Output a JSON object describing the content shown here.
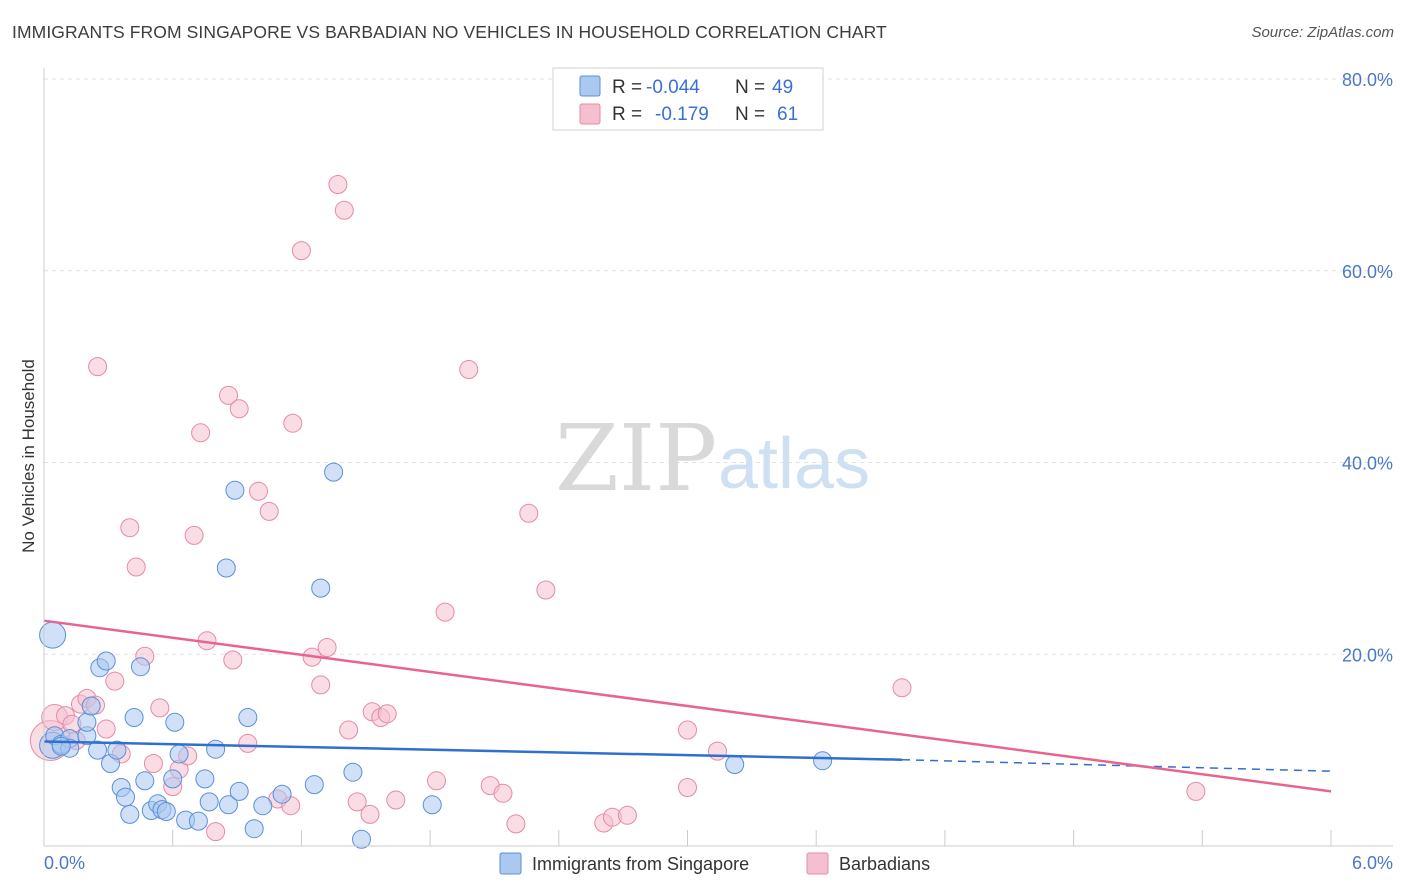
{
  "title": "IMMIGRANTS FROM SINGAPORE VS BARBADIAN NO VEHICLES IN HOUSEHOLD CORRELATION CHART",
  "source": "Source: ZipAtlas.com",
  "watermark": {
    "zip": "ZIP",
    "atlas": "atlas"
  },
  "colors": {
    "blue_fill": "#aac8f0",
    "blue_stroke": "#5b8fd8",
    "blue_line": "#2f6fd0",
    "pink_fill": "#f6bfd0",
    "pink_stroke": "#e68aa8",
    "pink_line": "#e8648f",
    "tick_text": "#4a78c8",
    "grid": "#dddddd"
  },
  "legend": {
    "rows": [
      {
        "r_label": "R =",
        "r_value": "-0.044",
        "n_label": "N =",
        "n_value": "49"
      },
      {
        "r_label": "R =",
        "r_value": "-0.179",
        "n_label": "N =",
        "n_value": "61"
      }
    ]
  },
  "chart_data": {
    "type": "scatter",
    "title": "IMMIGRANTS FROM SINGAPORE VS BARBADIAN NO VEHICLES IN HOUSEHOLD CORRELATION CHART",
    "xlabel": "",
    "ylabel": "No Vehicles in Household",
    "xlim": [
      0,
      6.0
    ],
    "ylim": [
      0,
      80
    ],
    "x_tick_labels": [
      "0.0%",
      "6.0%"
    ],
    "y_ticks": [
      20,
      40,
      60,
      80
    ],
    "y_tick_labels": [
      "20.0%",
      "40.0%",
      "60.0%",
      "80.0%"
    ],
    "grid": true,
    "legend_position": "top-center",
    "series": [
      {
        "name": "Immigrants from Singapore",
        "color": "#5b8fd8",
        "trend": {
          "x0": 0,
          "y0": 10.9,
          "x1": 4.0,
          "y1": 9.0,
          "x_dash_end": 6.0,
          "y_dash_end": 7.8
        },
        "points": [
          [
            0.04,
            22.0,
            2
          ],
          [
            0.04,
            10.5,
            2
          ],
          [
            0.05,
            11.5,
            1
          ],
          [
            0.08,
            10.6,
            1
          ],
          [
            0.12,
            11.2,
            1
          ],
          [
            0.12,
            10.2,
            1
          ],
          [
            0.2,
            11.5,
            1
          ],
          [
            0.2,
            12.9,
            1
          ],
          [
            0.22,
            14.6,
            1
          ],
          [
            0.25,
            10.0,
            1
          ],
          [
            0.26,
            18.6,
            1
          ],
          [
            0.29,
            19.3,
            1
          ],
          [
            0.31,
            8.6,
            1
          ],
          [
            0.34,
            10.0,
            1
          ],
          [
            0.36,
            6.1,
            1
          ],
          [
            0.38,
            5.1,
            1
          ],
          [
            0.4,
            3.3,
            1
          ],
          [
            0.42,
            13.4,
            1
          ],
          [
            0.45,
            18.7,
            1
          ],
          [
            0.47,
            6.8,
            1
          ],
          [
            0.5,
            3.7,
            1
          ],
          [
            0.53,
            4.4,
            1
          ],
          [
            0.55,
            3.8,
            1
          ],
          [
            0.57,
            3.6,
            1
          ],
          [
            0.6,
            7.0,
            1
          ],
          [
            0.61,
            12.9,
            1
          ],
          [
            0.63,
            9.6,
            1
          ],
          [
            0.66,
            2.7,
            1
          ],
          [
            0.72,
            2.6,
            1
          ],
          [
            0.75,
            7.0,
            1
          ],
          [
            0.77,
            4.6,
            1
          ],
          [
            0.8,
            10.1,
            1
          ],
          [
            0.85,
            29.0,
            1
          ],
          [
            0.86,
            4.3,
            1
          ],
          [
            0.89,
            37.1,
            1
          ],
          [
            0.91,
            5.7,
            1
          ],
          [
            0.95,
            13.4,
            1
          ],
          [
            0.98,
            1.8,
            1
          ],
          [
            1.02,
            4.2,
            1
          ],
          [
            1.11,
            5.4,
            1
          ],
          [
            1.26,
            6.4,
            1
          ],
          [
            1.29,
            26.9,
            1
          ],
          [
            1.35,
            39.0,
            1
          ],
          [
            1.44,
            7.7,
            1
          ],
          [
            1.48,
            0.7,
            1
          ],
          [
            1.81,
            4.3,
            1
          ],
          [
            3.22,
            8.5,
            1
          ],
          [
            3.63,
            8.9,
            1
          ],
          [
            0.08,
            10.4,
            1
          ]
        ]
      },
      {
        "name": "Barbadians",
        "color": "#e68aa8",
        "trend": {
          "x0": 0,
          "y0": 23.5,
          "x1": 6.0,
          "y1": 5.7
        },
        "points": [
          [
            0.03,
            11.0,
            4
          ],
          [
            0.05,
            13.4,
            2
          ],
          [
            0.1,
            13.6,
            1
          ],
          [
            0.13,
            12.7,
            1
          ],
          [
            0.15,
            11.0,
            1
          ],
          [
            0.17,
            14.8,
            1
          ],
          [
            0.2,
            15.4,
            1
          ],
          [
            0.24,
            14.7,
            1
          ],
          [
            0.25,
            50.0,
            1
          ],
          [
            0.29,
            12.2,
            1
          ],
          [
            0.33,
            17.2,
            1
          ],
          [
            0.36,
            9.6,
            1
          ],
          [
            0.4,
            33.2,
            1
          ],
          [
            0.43,
            29.1,
            1
          ],
          [
            0.47,
            19.8,
            1
          ],
          [
            0.51,
            8.6,
            1
          ],
          [
            0.54,
            14.4,
            1
          ],
          [
            0.6,
            6.2,
            1
          ],
          [
            0.63,
            8.0,
            1
          ],
          [
            0.67,
            9.4,
            1
          ],
          [
            0.7,
            32.4,
            1
          ],
          [
            0.73,
            43.1,
            1
          ],
          [
            0.76,
            21.4,
            1
          ],
          [
            0.8,
            1.5,
            1
          ],
          [
            0.86,
            47.0,
            1
          ],
          [
            0.88,
            19.4,
            1
          ],
          [
            0.91,
            45.6,
            1
          ],
          [
            0.95,
            10.7,
            1
          ],
          [
            1.0,
            37.0,
            1
          ],
          [
            1.05,
            34.9,
            1
          ],
          [
            1.09,
            4.9,
            1
          ],
          [
            1.15,
            4.2,
            1
          ],
          [
            1.16,
            44.1,
            1
          ],
          [
            1.2,
            62.1,
            1
          ],
          [
            1.25,
            19.7,
            1
          ],
          [
            1.29,
            16.8,
            1
          ],
          [
            1.32,
            20.7,
            1
          ],
          [
            1.37,
            69.0,
            1
          ],
          [
            1.4,
            66.3,
            1
          ],
          [
            1.42,
            12.1,
            1
          ],
          [
            1.46,
            4.6,
            1
          ],
          [
            1.52,
            3.3,
            1
          ],
          [
            1.53,
            14.0,
            1
          ],
          [
            1.57,
            13.4,
            1
          ],
          [
            1.6,
            13.8,
            1
          ],
          [
            1.64,
            4.8,
            1
          ],
          [
            1.83,
            6.8,
            1
          ],
          [
            1.87,
            24.4,
            1
          ],
          [
            1.98,
            49.7,
            1
          ],
          [
            2.08,
            6.3,
            1
          ],
          [
            2.14,
            5.5,
            1
          ],
          [
            2.2,
            2.3,
            1
          ],
          [
            2.26,
            34.7,
            1
          ],
          [
            2.34,
            26.7,
            1
          ],
          [
            2.61,
            2.4,
            1
          ],
          [
            2.65,
            3.0,
            1
          ],
          [
            2.72,
            3.2,
            1
          ],
          [
            3.0,
            6.1,
            1
          ],
          [
            3.0,
            12.1,
            1
          ],
          [
            3.14,
            9.9,
            1
          ],
          [
            4.0,
            16.5,
            1
          ],
          [
            5.37,
            5.7,
            1
          ]
        ]
      }
    ]
  }
}
